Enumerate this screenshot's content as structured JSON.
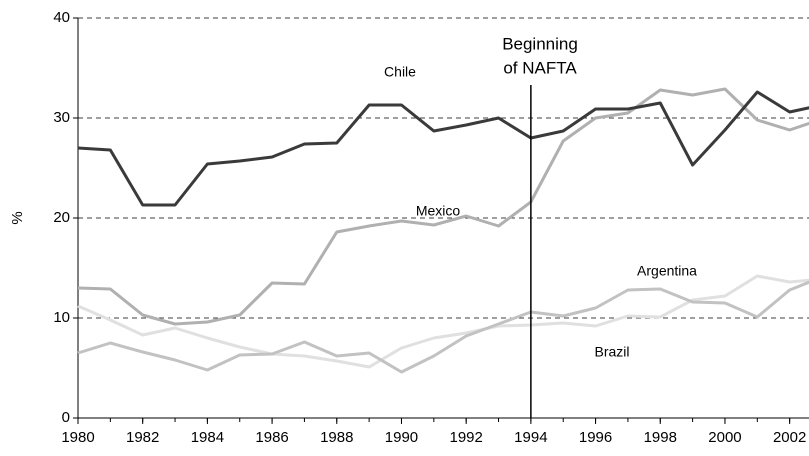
{
  "chart_data": {
    "type": "line",
    "ylabel": "%",
    "annotation": {
      "lines": [
        "Beginning",
        "of NAFTA"
      ],
      "x": 1994
    },
    "x": [
      1980,
      1981,
      1982,
      1983,
      1984,
      1985,
      1986,
      1987,
      1988,
      1989,
      1990,
      1991,
      1992,
      1993,
      1994,
      1995,
      1996,
      1997,
      1998,
      1999,
      2000,
      2001,
      2002,
      2003
    ],
    "series": [
      {
        "name": "Chile",
        "color": "#3a3a3a",
        "values": [
          27.0,
          26.8,
          21.3,
          21.3,
          25.4,
          25.7,
          26.1,
          27.4,
          27.5,
          31.3,
          31.3,
          28.7,
          29.3,
          30.0,
          28.0,
          28.7,
          30.9,
          30.9,
          31.5,
          25.3,
          28.8,
          32.6,
          30.6,
          31.3
        ]
      },
      {
        "name": "Mexico",
        "color": "#b0b0b0",
        "values": [
          13.0,
          12.9,
          10.3,
          9.4,
          9.6,
          10.3,
          13.5,
          13.4,
          18.6,
          19.2,
          19.7,
          19.3,
          20.2,
          19.2,
          21.6,
          27.7,
          30.0,
          30.5,
          32.8,
          32.3,
          32.9,
          29.8,
          28.8,
          29.9
        ]
      },
      {
        "name": "Argentina",
        "color": "#c2c2c2",
        "values": [
          6.5,
          7.5,
          6.6,
          5.8,
          4.8,
          6.3,
          6.4,
          7.6,
          6.2,
          6.5,
          4.6,
          6.2,
          8.2,
          9.4,
          10.6,
          10.2,
          11.0,
          12.8,
          12.9,
          11.6,
          11.5,
          10.1,
          12.8,
          14.1
        ]
      },
      {
        "name": "Brazil",
        "color": "#e0e0e0",
        "values": [
          11.2,
          9.8,
          8.3,
          9.0,
          8.0,
          7.1,
          6.4,
          6.2,
          5.7,
          5.1,
          7.0,
          8.0,
          8.5,
          9.2,
          9.3,
          9.5,
          9.2,
          10.2,
          10.1,
          11.8,
          12.2,
          14.2,
          13.6,
          13.9
        ]
      }
    ],
    "xlim": [
      1980,
      2003
    ],
    "xticks": [
      1980,
      1982,
      1984,
      1986,
      1988,
      1990,
      1992,
      1994,
      1996,
      1998,
      2000,
      2002
    ],
    "ylim": [
      0,
      40
    ],
    "yticks": [
      0,
      10,
      20,
      30,
      40
    ],
    "grid": true
  }
}
